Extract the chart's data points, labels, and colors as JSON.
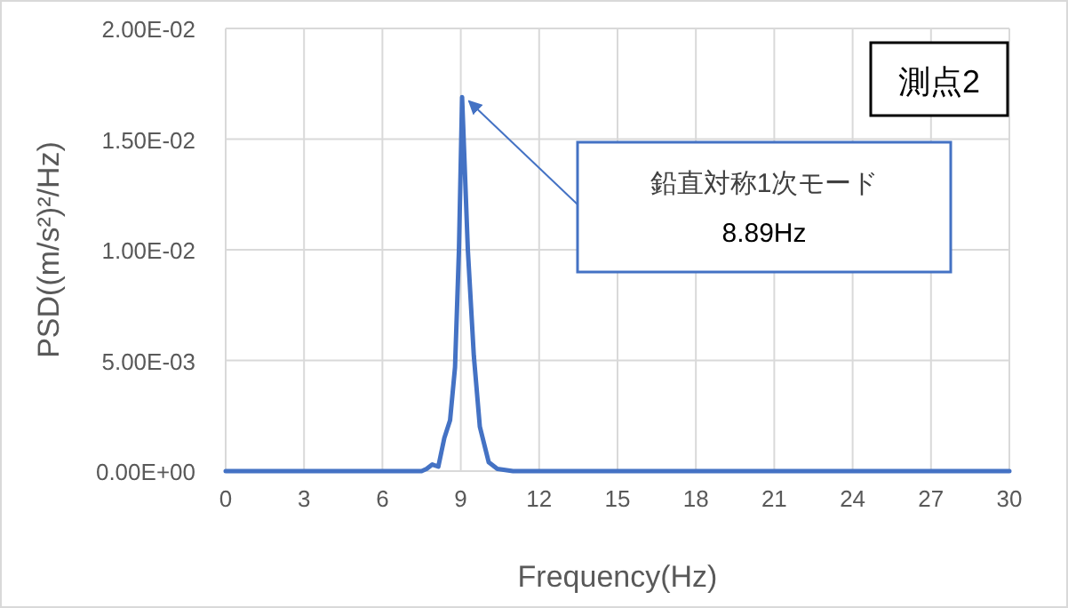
{
  "chart_data": {
    "type": "line",
    "xlabel": "Frequency(Hz)",
    "ylabel": "PSD((m/s²)²/Hz)",
    "x": [
      0,
      3,
      6,
      7.5,
      7.69,
      7.91,
      8.14,
      8.37,
      8.59,
      8.78,
      8.93,
      9.05,
      9.27,
      9.5,
      9.73,
      10.07,
      10.4,
      11,
      15,
      20,
      25,
      30
    ],
    "series": [
      {
        "color": "#4472c4",
        "values": [
          0,
          0,
          0,
          0,
          0.0001,
          0.0003,
          0.0002,
          0.0015,
          0.0023,
          0.0047,
          0.01,
          0.0169,
          0.01,
          0.0052,
          0.002,
          0.0004,
          0.0001,
          0,
          0,
          0,
          0,
          0
        ]
      }
    ],
    "xlim": [
      0,
      30
    ],
    "xticks": [
      0,
      3,
      6,
      9,
      12,
      15,
      18,
      21,
      24,
      27,
      30
    ],
    "ylim": [
      0,
      0.02
    ],
    "yticks": [
      {
        "value": 0,
        "label": "0.00E+00"
      },
      {
        "value": 0.005,
        "label": "5.00E-03"
      },
      {
        "value": 0.01,
        "label": "1.00E-02"
      },
      {
        "value": 0.015,
        "label": "1.50E-02"
      },
      {
        "value": 0.02,
        "label": "2.00E-02"
      }
    ],
    "grid": true,
    "marker": "none",
    "line_style": "solid",
    "annotations": [
      "測点2",
      "鉛直対称1次モード\n8.89Hz"
    ]
  }
}
